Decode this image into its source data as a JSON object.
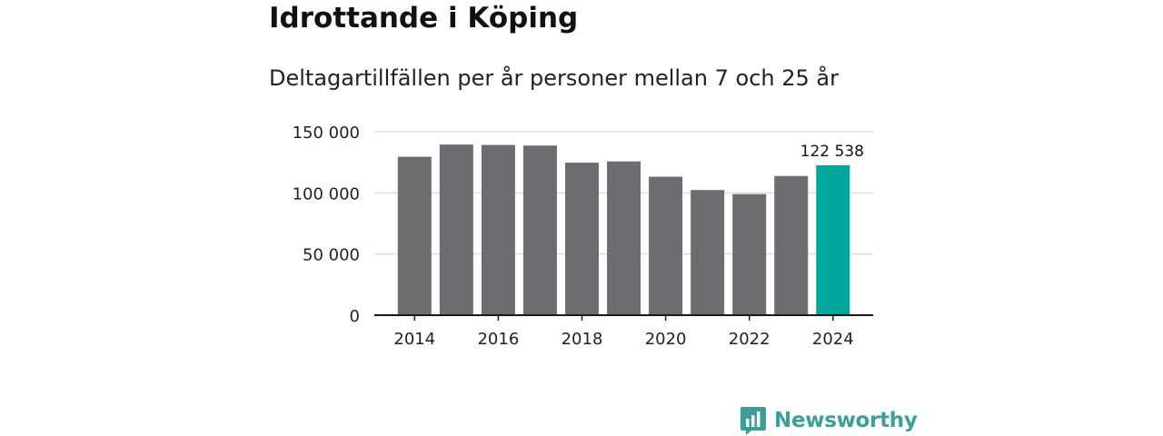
{
  "title": "Idrottande i Köping",
  "subtitle": "Deltagartillfällen per år personer mellan 7 och 25 år",
  "brand": {
    "name": "Newsworthy",
    "color": "#3a9e9a",
    "icon": "newsworthy-logo-icon"
  },
  "colors": {
    "bar": "#6d6c71",
    "highlight": "#00a79d",
    "grid": "#dddddd",
    "axis": "#1a1a1a"
  },
  "chart_data": {
    "type": "bar",
    "categories": [
      "2014",
      "2015",
      "2016",
      "2017",
      "2018",
      "2019",
      "2020",
      "2021",
      "2022",
      "2023",
      "2024"
    ],
    "values": [
      129500,
      139500,
      139200,
      138700,
      124700,
      125700,
      113200,
      102300,
      99000,
      113800,
      122538
    ],
    "highlight_index": 10,
    "highlight_label": "122 538",
    "ylim": [
      0,
      150000
    ],
    "yticks": [
      0,
      50000,
      100000,
      150000
    ],
    "ytick_labels": [
      "0",
      "50 000",
      "100 000",
      "150 000"
    ],
    "xtick_labels": [
      "2014",
      "2016",
      "2018",
      "2020",
      "2022",
      "2024"
    ],
    "xtick_categories": [
      "2014",
      "2016",
      "2018",
      "2020",
      "2022",
      "2024"
    ],
    "grid": true,
    "title": "Idrottande i Köping",
    "xlabel": "",
    "ylabel": ""
  }
}
